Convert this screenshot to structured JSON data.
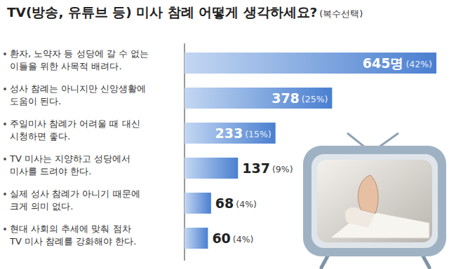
{
  "chart_data": {
    "type": "bar",
    "orientation": "horizontal",
    "title": "TV(방송, 유튜브 등) 미사 참례 어떻게 생각하세요?",
    "subtitle": "(복수선택)",
    "categories": [
      "환자, 노약자 등 성당에 갈 수 없는\n이들을 위한 사목적 배려다.",
      "성사 참례는 아니지만 신앙생활에\n도움이 된다.",
      "주일미사 참례가 어려울 때 대신\n시청하면 좋다.",
      "TV 미사는 지양하고 성당에서\n미사를 드려야 한다.",
      "실제 성사 참례가 아니기 때문에\n크게 의미 없다.",
      "현대 사회의 추세에 맞춰 점차\nTV 미사 참례를 강화해야 한다."
    ],
    "values": [
      645,
      378,
      233,
      137,
      68,
      60
    ],
    "value_labels": [
      "645명",
      "378",
      "233",
      "137",
      "68",
      "60"
    ],
    "share_labels": [
      "(42%)",
      "(25%)",
      "(15%)",
      "(9%)",
      "(4%)",
      "(4%)"
    ],
    "xlim": [
      0,
      645
    ],
    "color": "#4a7fd0",
    "data_labels": true,
    "tick_labels": false,
    "grid": false
  }
}
